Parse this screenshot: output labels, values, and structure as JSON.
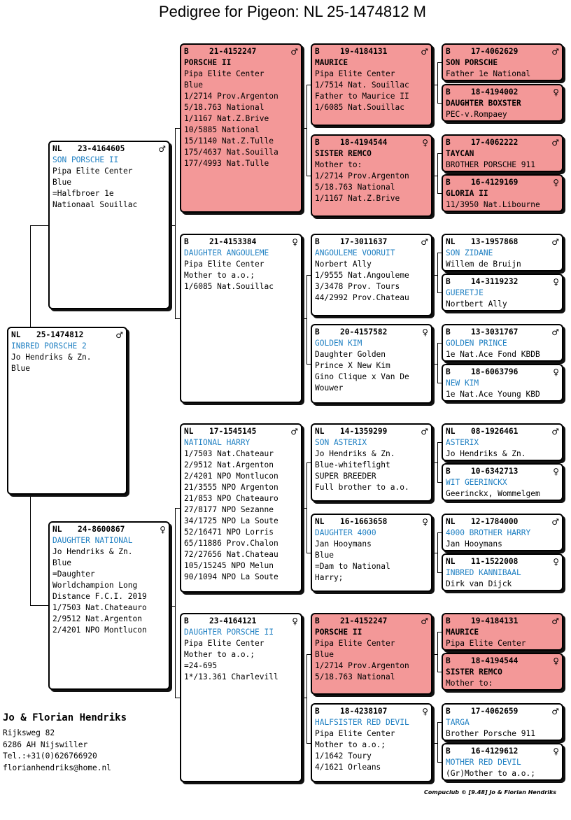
{
  "title": "Pedigree for Pigeon: NL  25-1474812 M",
  "subject": {
    "cc": "NL",
    "ring": "25-1474812",
    "sex": "♂",
    "name": "INBRED PORSCHE 2",
    "name_style": "blue",
    "lines": [
      "Jo Hendriks & Zn.",
      "Blue"
    ]
  },
  "sire": {
    "cc": "NL",
    "ring": "23-4164605",
    "sex": "♂",
    "name": "SON PORSCHE II",
    "name_style": "blue",
    "lines": [
      "Pipa Elite Center",
      "Blue",
      "=Halfbroer 1e",
      "Nationaal Souillac"
    ]
  },
  "dam": {
    "cc": "NL",
    "ring": "24-8600867",
    "sex": "♀",
    "name": "DAUGHTER NATIONAL",
    "name_style": "blue",
    "lines": [
      "Jo Hendriks & Zn.",
      "Blue",
      "=Daughter",
      "Worldchampion Long",
      "Distance F.C.I. 2019",
      "1/7503 Nat.Chateauro",
      "2/9512 Nat.Argenton",
      "2/4201 NPO Montlucon"
    ]
  },
  "gen3": [
    {
      "cc": "B",
      "ring": "21-4152247",
      "sex": "♂",
      "name": "PORSCHE II",
      "name_style": "bold",
      "red": true,
      "lines": [
        "Pipa Elite Center",
        "Blue",
        "1/2714 Prov.Argenton",
        "5/18.763 National",
        "1/1167 Nat.Z.Brive",
        "10/5885 National",
        "15/1140 Nat.Z.Tulle",
        "175/4637 Nat.Souilla",
        "177/4993 Nat.Tulle"
      ]
    },
    {
      "cc": "B",
      "ring": "21-4153384",
      "sex": "♀",
      "name": "DAUGHTER ANGOULEME",
      "name_style": "blue",
      "red": false,
      "lines": [
        "Pipa Elite Center",
        "Mother to a.o.;",
        "1/6085 Nat.Souillac"
      ]
    },
    {
      "cc": "NL",
      "ring": "17-1545145",
      "sex": "♂",
      "name": "NATIONAL HARRY",
      "name_style": "blue",
      "red": false,
      "lines": [
        "1/7503 Nat.Chateaur",
        "2/9512 Nat.Argenton",
        "2/4201 NPO Montlucon",
        "21/3555 NPO Argenton",
        "21/853 NPO Chateauro",
        "27/8177 NPO Sezanne",
        "34/1725 NPO La Soute",
        "52/16471 NPO Lorris",
        "65/11886 Prov.Chalon",
        "72/27656 Nat.Chateau",
        "105/15245 NPO Melun",
        "90/1094 NPO La Soute"
      ]
    },
    {
      "cc": "B",
      "ring": "23-4164121",
      "sex": "♀",
      "name": "DAUGHTER PORSCHE II",
      "name_style": "blue",
      "red": false,
      "lines": [
        "Pipa Elite Center",
        "Mother to a.o.;",
        "=24-695",
        "1*/13.361 Charlevill"
      ]
    }
  ],
  "gen4": [
    {
      "cc": "B",
      "ring": "19-4184131",
      "sex": "♂",
      "name": "MAURICE",
      "name_style": "bold",
      "red": true,
      "lines": [
        "Pipa Elite Center",
        "1/7514 Nat. Souillac",
        "Father to Maurice II",
        "1/6085 Nat.Souillac"
      ]
    },
    {
      "cc": "B",
      "ring": "18-4194544",
      "sex": "♀",
      "name": "SISTER REMCO",
      "name_style": "bold",
      "red": true,
      "lines": [
        "Mother to:",
        "1/2714 Prov.Argenton",
        "5/18.763 National",
        "1/1167 Nat.Z.Brive"
      ]
    },
    {
      "cc": "B",
      "ring": "17-3011637",
      "sex": "♂",
      "name": "ANGOULEME VOORUIT",
      "name_style": "blue",
      "red": false,
      "lines": [
        "Norbert Ally",
        "1/9555 Nat.Angouleme",
        "3/3478 Prov. Tours",
        "44/2992 Prov.Chateau"
      ]
    },
    {
      "cc": "B",
      "ring": "20-4157582",
      "sex": "♀",
      "name": "GOLDEN KIM",
      "name_style": "blue",
      "red": false,
      "lines": [
        "Daughter Golden",
        "Prince X New Kim",
        "Gino Clique x Van De",
        "Wouwer"
      ]
    },
    {
      "cc": "NL",
      "ring": "14-1359299",
      "sex": "♂",
      "name": "SON ASTERIX",
      "name_style": "blue",
      "red": false,
      "lines": [
        "Jo Hendriks & Zn.",
        "Blue-whiteflight",
        "SUPER BREEDER",
        "Full brother to a.o."
      ]
    },
    {
      "cc": "NL",
      "ring": "16-1663658",
      "sex": "♀",
      "name": "DAUGHTER 4000",
      "name_style": "blue",
      "red": false,
      "lines": [
        "Jan Hooymans",
        "Blue",
        "=Dam to National",
        "Harry;"
      ]
    },
    {
      "cc": "B",
      "ring": "21-4152247",
      "sex": "♂",
      "name": "PORSCHE II",
      "name_style": "bold",
      "red": true,
      "lines": [
        "Pipa Elite Center",
        "Blue",
        "1/2714 Prov.Argenton",
        "5/18.763 National"
      ]
    },
    {
      "cc": "B",
      "ring": "18-4238107",
      "sex": "♀",
      "name": "HALFSISTER RED DEVIL",
      "name_style": "blue",
      "red": false,
      "lines": [
        "Pipa Elite Center",
        "Mother to a.o.;",
        "1/1642 Toury",
        "4/1621 Orleans"
      ]
    }
  ],
  "gen5": [
    {
      "cc": "B",
      "ring": "17-4062629",
      "sex": "♂",
      "name": "SON PORSCHE",
      "name_style": "bold",
      "red": true,
      "lines": [
        "Father 1e National"
      ]
    },
    {
      "cc": "B",
      "ring": "18-4194002",
      "sex": "♀",
      "name": "DAUGHTER BOXSTER",
      "name_style": "bold",
      "red": true,
      "lines": [
        "PEC-v.Rompaey"
      ]
    },
    {
      "cc": "B",
      "ring": "17-4062222",
      "sex": "♂",
      "name": "TAYCAN",
      "name_style": "bold",
      "red": true,
      "lines": [
        "BROTHER PORSCHE 911"
      ]
    },
    {
      "cc": "B",
      "ring": "16-4129169",
      "sex": "♀",
      "name": "GLORIA II",
      "name_style": "bold",
      "red": true,
      "lines": [
        "11/3950 Nat.Libourne"
      ]
    },
    {
      "cc": "NL",
      "ring": "13-1957868",
      "sex": "♂",
      "name": "SON ZIDANE",
      "name_style": "blue",
      "red": false,
      "lines": [
        "Willem de Bruijn"
      ]
    },
    {
      "cc": "B",
      "ring": "14-3119232",
      "sex": "♀",
      "name": "GUERETJE",
      "name_style": "blue",
      "red": false,
      "lines": [
        "Nortbert Ally"
      ]
    },
    {
      "cc": "B",
      "ring": "13-3031767",
      "sex": "♂",
      "name": "GOLDEN PRINCE",
      "name_style": "blue",
      "red": false,
      "lines": [
        "1e Nat.Ace Fond KBDB"
      ]
    },
    {
      "cc": "B",
      "ring": "18-6063796",
      "sex": "♀",
      "name": "NEW KIM",
      "name_style": "blue",
      "red": false,
      "lines": [
        "1e Nat.Ace Young KBD"
      ]
    },
    {
      "cc": "NL",
      "ring": "08-1926461",
      "sex": "♂",
      "name": "ASTERIX",
      "name_style": "blue",
      "red": false,
      "lines": [
        "Jo Hendriks & Zn."
      ]
    },
    {
      "cc": "B",
      "ring": "10-6342713",
      "sex": "♀",
      "name": "WIT GEERINCKX",
      "name_style": "blue",
      "red": false,
      "lines": [
        "Geerinckx, Wommelgem"
      ]
    },
    {
      "cc": "NL",
      "ring": "12-1784000",
      "sex": "♂",
      "name": "4000 BROTHER HARRY",
      "name_style": "blue",
      "red": false,
      "lines": [
        "Jan Hooymans"
      ]
    },
    {
      "cc": "NL",
      "ring": "11-1522008",
      "sex": "♀",
      "name": "INBRED KANNIBAAL",
      "name_style": "blue",
      "red": false,
      "lines": [
        "Dirk van Dijck"
      ]
    },
    {
      "cc": "B",
      "ring": "19-4184131",
      "sex": "♂",
      "name": "MAURICE",
      "name_style": "bold",
      "red": true,
      "lines": [
        "Pipa Elite Center"
      ]
    },
    {
      "cc": "B",
      "ring": "18-4194544",
      "sex": "♀",
      "name": "SISTER REMCO",
      "name_style": "bold",
      "red": true,
      "lines": [
        "Mother to:"
      ]
    },
    {
      "cc": "B",
      "ring": "17-4062659",
      "sex": "♂",
      "name": "TARGA",
      "name_style": "blue",
      "red": false,
      "lines": [
        "Brother Porsche 911"
      ]
    },
    {
      "cc": "B",
      "ring": "16-4129612",
      "sex": "♀",
      "name": "MOTHER RED DEVIL",
      "name_style": "blue",
      "red": false,
      "lines": [
        "(Gr)Mother to a.o.;"
      ]
    }
  ],
  "owner": {
    "name": "Jo & Florian Hendriks",
    "address1": "Rijksweg 82",
    "address2": "6286 AH  Nijswiller",
    "phone": "Tel.:+31(0)626766920",
    "email": "florianhendriks@home.nl"
  },
  "footer": "Compuclub © [9.48]  Jo & Florian Hendriks",
  "colors": {
    "highlight": "#f39898",
    "name_blue": "#1e7fc2"
  }
}
